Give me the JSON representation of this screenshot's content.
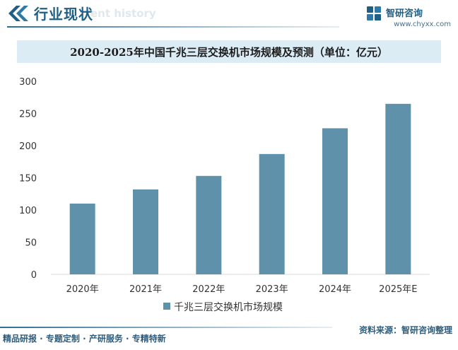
{
  "header": {
    "title": "行业现状",
    "ghost_text": "ent history",
    "brand_name": "智研咨询",
    "brand_url": "www.chyxx.com"
  },
  "footer": {
    "left_text": "精品研报 · 专题定制 · 产研服务 · 专精特新",
    "source": "资料来源：智研咨询整理"
  },
  "colors": {
    "bar": "#5f92aa",
    "accent": "#1f5f86",
    "title_band": "#dcecf5"
  },
  "chart_data": {
    "type": "bar",
    "title": "2020-2025年中国千兆三层交换机市场规模及预测（单位：亿元）",
    "categories": [
      "2020年",
      "2021年",
      "2022年",
      "2023年",
      "2024年",
      "2025年E"
    ],
    "series": [
      {
        "name": "千兆三层交换机市场规模",
        "values": [
          110,
          132,
          153,
          187,
          227,
          265
        ]
      }
    ],
    "yticks": [
      0,
      50,
      100,
      150,
      200,
      250,
      300
    ],
    "ylim": [
      0,
      300
    ],
    "grid": false,
    "legend": "bottom-center"
  }
}
